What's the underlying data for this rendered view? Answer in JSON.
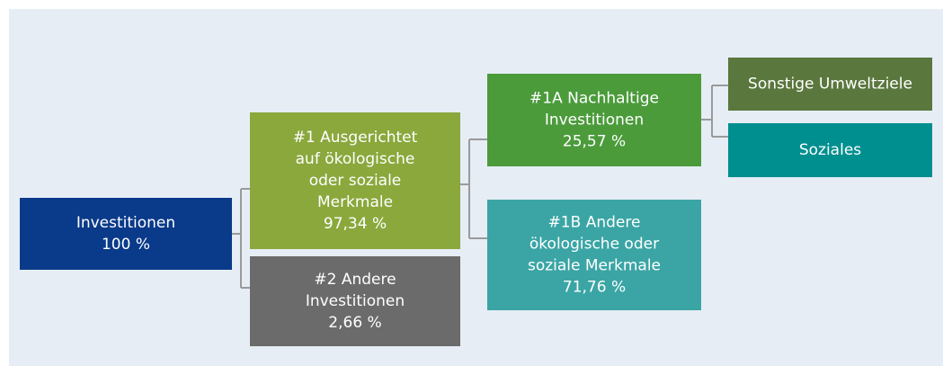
{
  "nodes": [
    {
      "lines": [
        "Investitionen",
        "100 %"
      ]
    },
    {
      "lines": [
        "#1 Ausgerichtet",
        "auf ökologische",
        "oder soziale",
        "Merkmale",
        "97,34 %"
      ]
    },
    {
      "lines": [
        "#2 Andere",
        "Investitionen",
        "2,66 %"
      ]
    },
    {
      "lines": [
        "#1A Nachhaltige",
        "Investitionen",
        "25,57 %"
      ]
    },
    {
      "lines": [
        "#1B Andere",
        "ökologische oder",
        "soziale Merkmale",
        "71,76 %"
      ]
    },
    {
      "lines": [
        "Sonstige Umweltziele"
      ]
    },
    {
      "lines": [
        "Soziales"
      ]
    }
  ]
}
